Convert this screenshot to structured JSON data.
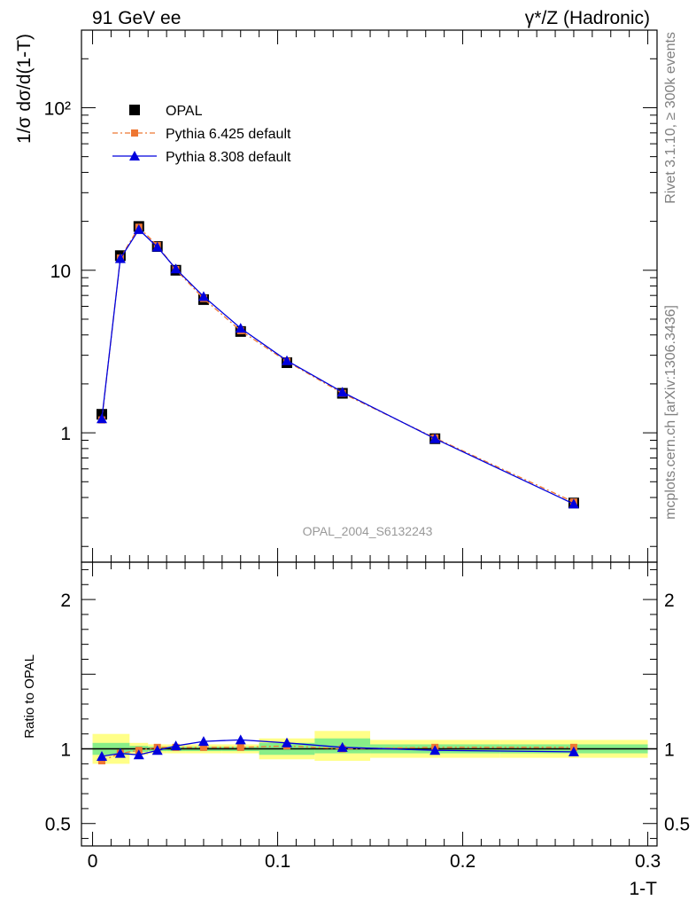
{
  "header": {
    "left": "91 GeV ee",
    "right": "γ*/Z (Hadronic)"
  },
  "side_labels": {
    "rivet": "Rivet 3.1.10, ≥ 300k events",
    "mcplots": "mcplots.cern.ch [arXiv:1306.3436]"
  },
  "watermark": "OPAL_2004_S6132243",
  "legend": [
    {
      "label": "OPAL",
      "style": "data",
      "color": "#000000"
    },
    {
      "label": "Pythia 6.425 default",
      "style": "dashdot-square",
      "color": "#ee7733"
    },
    {
      "label": "Pythia 8.308 default",
      "style": "solid-triangle",
      "color": "#0000dd"
    }
  ],
  "chart_data": [
    {
      "type": "scatter",
      "panel": "main",
      "ylabel": "1/σ dσ/d(1-T)",
      "yscale": "log",
      "ylim": [
        0.16,
        300
      ],
      "xlim": [
        -0.006,
        0.305
      ],
      "ytick_labels": [
        "1",
        "10",
        "10²"
      ],
      "series": [
        {
          "name": "OPAL",
          "x": [
            0.005,
            0.015,
            0.025,
            0.035,
            0.045,
            0.06,
            0.08,
            0.105,
            0.135,
            0.185,
            0.26
          ],
          "values": [
            1.3,
            12.3,
            18.6,
            14.0,
            10.0,
            6.6,
            4.2,
            2.7,
            1.75,
            0.92,
            0.37
          ]
        },
        {
          "name": "Pythia 6.425 default",
          "x": [
            0.005,
            0.015,
            0.025,
            0.035,
            0.045,
            0.06,
            0.08,
            0.105,
            0.135,
            0.185,
            0.26
          ],
          "values": [
            1.2,
            11.9,
            18.4,
            14.2,
            10.1,
            6.7,
            4.25,
            2.75,
            1.75,
            0.93,
            0.375
          ]
        },
        {
          "name": "Pythia 8.308 default",
          "x": [
            0.005,
            0.015,
            0.025,
            0.035,
            0.045,
            0.06,
            0.08,
            0.105,
            0.135,
            0.185,
            0.26
          ],
          "values": [
            1.22,
            11.8,
            17.8,
            13.9,
            10.2,
            6.9,
            4.4,
            2.78,
            1.78,
            0.92,
            0.365
          ]
        }
      ]
    },
    {
      "type": "scatter",
      "panel": "ratio",
      "xlabel": "1-T",
      "ylabel": "Ratio to OPAL",
      "ylim": [
        0.35,
        2.25
      ],
      "xlim": [
        -0.006,
        0.305
      ],
      "ytick_labels": [
        "0.5",
        "1",
        "2"
      ],
      "xtick_labels": [
        "0",
        "0.1",
        "0.2",
        "0.3"
      ],
      "bands": [
        {
          "xmin": 0.0,
          "xmax": 0.02,
          "inner": [
            0.96,
            1.04
          ],
          "outer": [
            0.9,
            1.1
          ]
        },
        {
          "xmin": 0.02,
          "xmax": 0.03,
          "inner": [
            0.98,
            1.02
          ],
          "outer": [
            0.96,
            1.04
          ]
        },
        {
          "xmin": 0.03,
          "xmax": 0.04,
          "inner": [
            0.985,
            1.015
          ],
          "outer": [
            0.97,
            1.03
          ]
        },
        {
          "xmin": 0.04,
          "xmax": 0.05,
          "inner": [
            0.985,
            1.015
          ],
          "outer": [
            0.97,
            1.03
          ]
        },
        {
          "xmin": 0.05,
          "xmax": 0.07,
          "inner": [
            0.985,
            1.015
          ],
          "outer": [
            0.97,
            1.03
          ]
        },
        {
          "xmin": 0.07,
          "xmax": 0.09,
          "inner": [
            0.985,
            1.015
          ],
          "outer": [
            0.97,
            1.03
          ]
        },
        {
          "xmin": 0.09,
          "xmax": 0.12,
          "inner": [
            0.96,
            1.04
          ],
          "outer": [
            0.93,
            1.07
          ]
        },
        {
          "xmin": 0.12,
          "xmax": 0.15,
          "inner": [
            0.97,
            1.07
          ],
          "outer": [
            0.92,
            1.12
          ]
        },
        {
          "xmin": 0.15,
          "xmax": 0.22,
          "inner": [
            0.97,
            1.03
          ],
          "outer": [
            0.94,
            1.06
          ]
        },
        {
          "xmin": 0.22,
          "xmax": 0.3,
          "inner": [
            0.97,
            1.03
          ],
          "outer": [
            0.94,
            1.06
          ]
        }
      ],
      "series": [
        {
          "name": "Pythia 6.425 default",
          "x": [
            0.005,
            0.015,
            0.025,
            0.035,
            0.045,
            0.06,
            0.08,
            0.105,
            0.135,
            0.185,
            0.26
          ],
          "values": [
            0.92,
            0.97,
            0.99,
            1.01,
            1.01,
            1.01,
            1.01,
            1.02,
            1.0,
            1.01,
            1.01
          ]
        },
        {
          "name": "Pythia 8.308 default",
          "x": [
            0.005,
            0.015,
            0.025,
            0.035,
            0.045,
            0.06,
            0.08,
            0.105,
            0.135,
            0.185,
            0.26
          ],
          "values": [
            0.95,
            0.97,
            0.96,
            0.99,
            1.02,
            1.05,
            1.06,
            1.04,
            1.01,
            0.99,
            0.98
          ]
        }
      ],
      "colors": {
        "outer_band": "#ffff88",
        "inner_band": "#88ee88",
        "reference_line": "#000000"
      }
    }
  ]
}
